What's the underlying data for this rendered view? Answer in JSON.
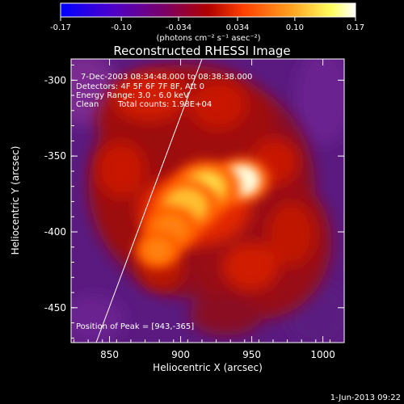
{
  "chart_data": {
    "type": "heatmap",
    "title": "Reconstructed RHESSI Image",
    "xlabel": "Heliocentric X (arcsec)",
    "ylabel": "Heliocentric Y (arcsec)",
    "xlim": [
      823,
      1015
    ],
    "ylim": [
      -473,
      -286
    ],
    "x_ticks": [
      "850",
      "900",
      "950",
      "1000"
    ],
    "x_tick_values": [
      850,
      900,
      950,
      1000
    ],
    "y_ticks": [
      "-300",
      "-350",
      "-400",
      "-450"
    ],
    "y_tick_values": [
      -300,
      -350,
      -400,
      -450
    ],
    "colorbar": {
      "tick_labels": [
        "-0.17",
        "-0.10",
        "-0.034",
        "0.034",
        "0.10",
        "0.17"
      ],
      "tick_values": [
        -0.17,
        -0.1,
        -0.034,
        0.034,
        0.1,
        0.17
      ],
      "range": [
        -0.17,
        0.17
      ],
      "units": "(photons cm⁻² s⁻¹ asec⁻²)",
      "colors": [
        "#0000ff",
        "#5000c8",
        "#7a0068",
        "#b00000",
        "#ff4000",
        "#ffa020",
        "#ffff60",
        "#ffffff"
      ]
    },
    "info": {
      "time_range": "7-Dec-2003 08:34:48.000 to 08:38:38.000",
      "detectors": "Detectors: 4F 5F 6F 7F 8F, Att 0",
      "energy": "Energy Range: 3.0 - 6.0 keV",
      "clean": "Clean",
      "counts": "Total counts: 1.98E+04"
    },
    "peak_text": "Position of Peak = [943,-365]",
    "peak": [
      943,
      -365
    ],
    "background_color": "#5a1a80",
    "sources": [
      {
        "x": 943,
        "y": -366,
        "sigma": 10,
        "amp": 0.17
      },
      {
        "x": 918,
        "y": -371,
        "sigma": 12,
        "amp": 0.13
      },
      {
        "x": 904,
        "y": -383,
        "sigma": 12,
        "amp": 0.12
      },
      {
        "x": 893,
        "y": -398,
        "sigma": 10,
        "amp": 0.1
      },
      {
        "x": 884,
        "y": -412,
        "sigma": 8,
        "amp": 0.09
      }
    ]
  },
  "timestamp": "1-Jun-2013 09:22"
}
